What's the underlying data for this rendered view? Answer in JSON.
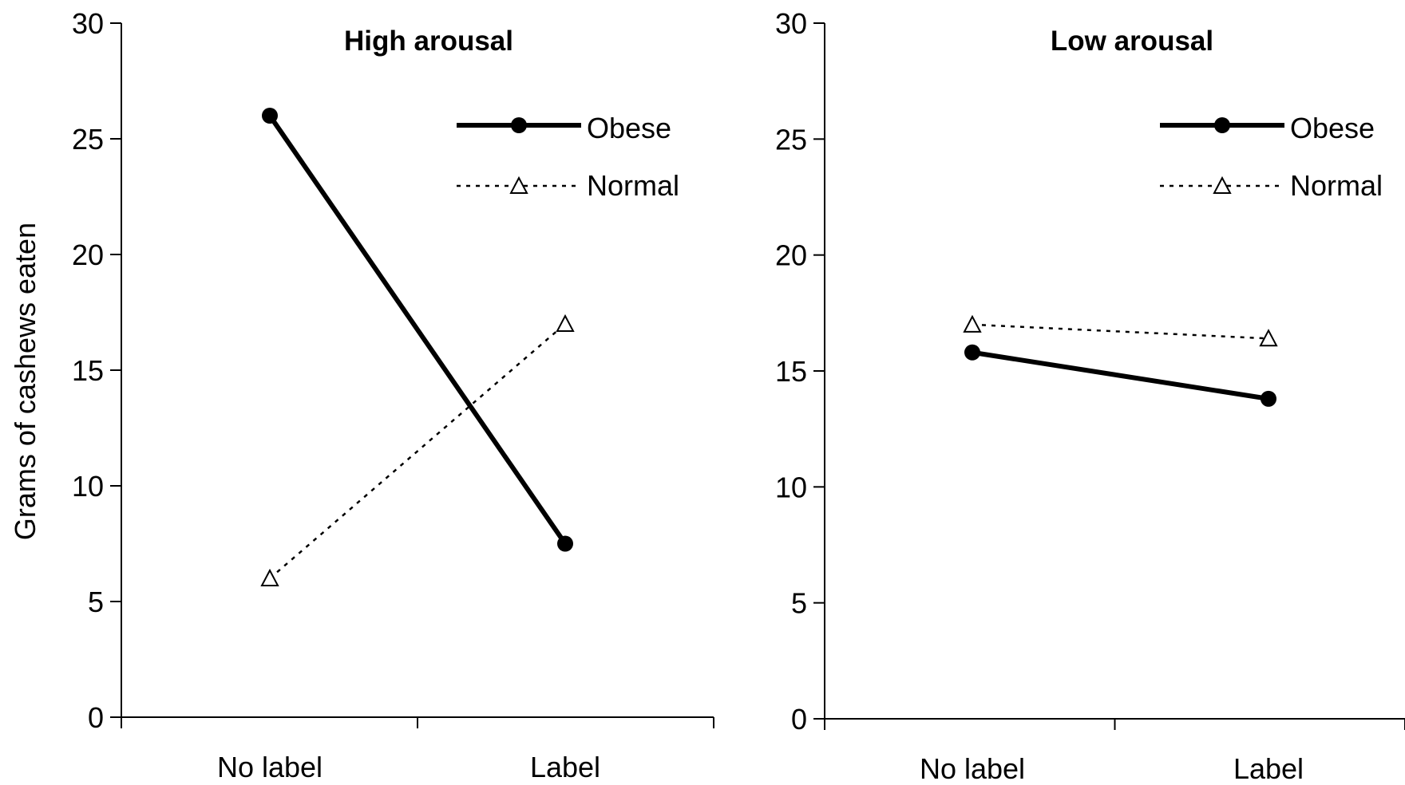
{
  "chart_data": [
    {
      "type": "line",
      "title": "High arousal",
      "ylabel": "Grams of cashews eaten",
      "xlabel": "",
      "categories": [
        "No label",
        "Label"
      ],
      "ylim": [
        0,
        30
      ],
      "yticks": [
        0,
        5,
        10,
        15,
        20,
        25,
        30
      ],
      "legend_position": "top-right",
      "grid": false,
      "series": [
        {
          "name": "Obese",
          "values": [
            26,
            7.5
          ],
          "style": "solid",
          "marker": "filled-circle",
          "color": "#000000"
        },
        {
          "name": "Normal",
          "values": [
            6,
            17
          ],
          "style": "dotted",
          "marker": "open-triangle",
          "color": "#000000"
        }
      ]
    },
    {
      "type": "line",
      "title": "Low arousal",
      "ylabel": "",
      "xlabel": "",
      "categories": [
        "No label",
        "Label"
      ],
      "ylim": [
        0,
        30
      ],
      "yticks": [
        0,
        5,
        10,
        15,
        20,
        25,
        30
      ],
      "legend_position": "top-right",
      "grid": false,
      "series": [
        {
          "name": "Obese",
          "values": [
            15.8,
            13.8
          ],
          "style": "solid",
          "marker": "filled-circle",
          "color": "#000000"
        },
        {
          "name": "Normal",
          "values": [
            17,
            16.4
          ],
          "style": "dotted",
          "marker": "open-triangle",
          "color": "#000000"
        }
      ]
    }
  ]
}
